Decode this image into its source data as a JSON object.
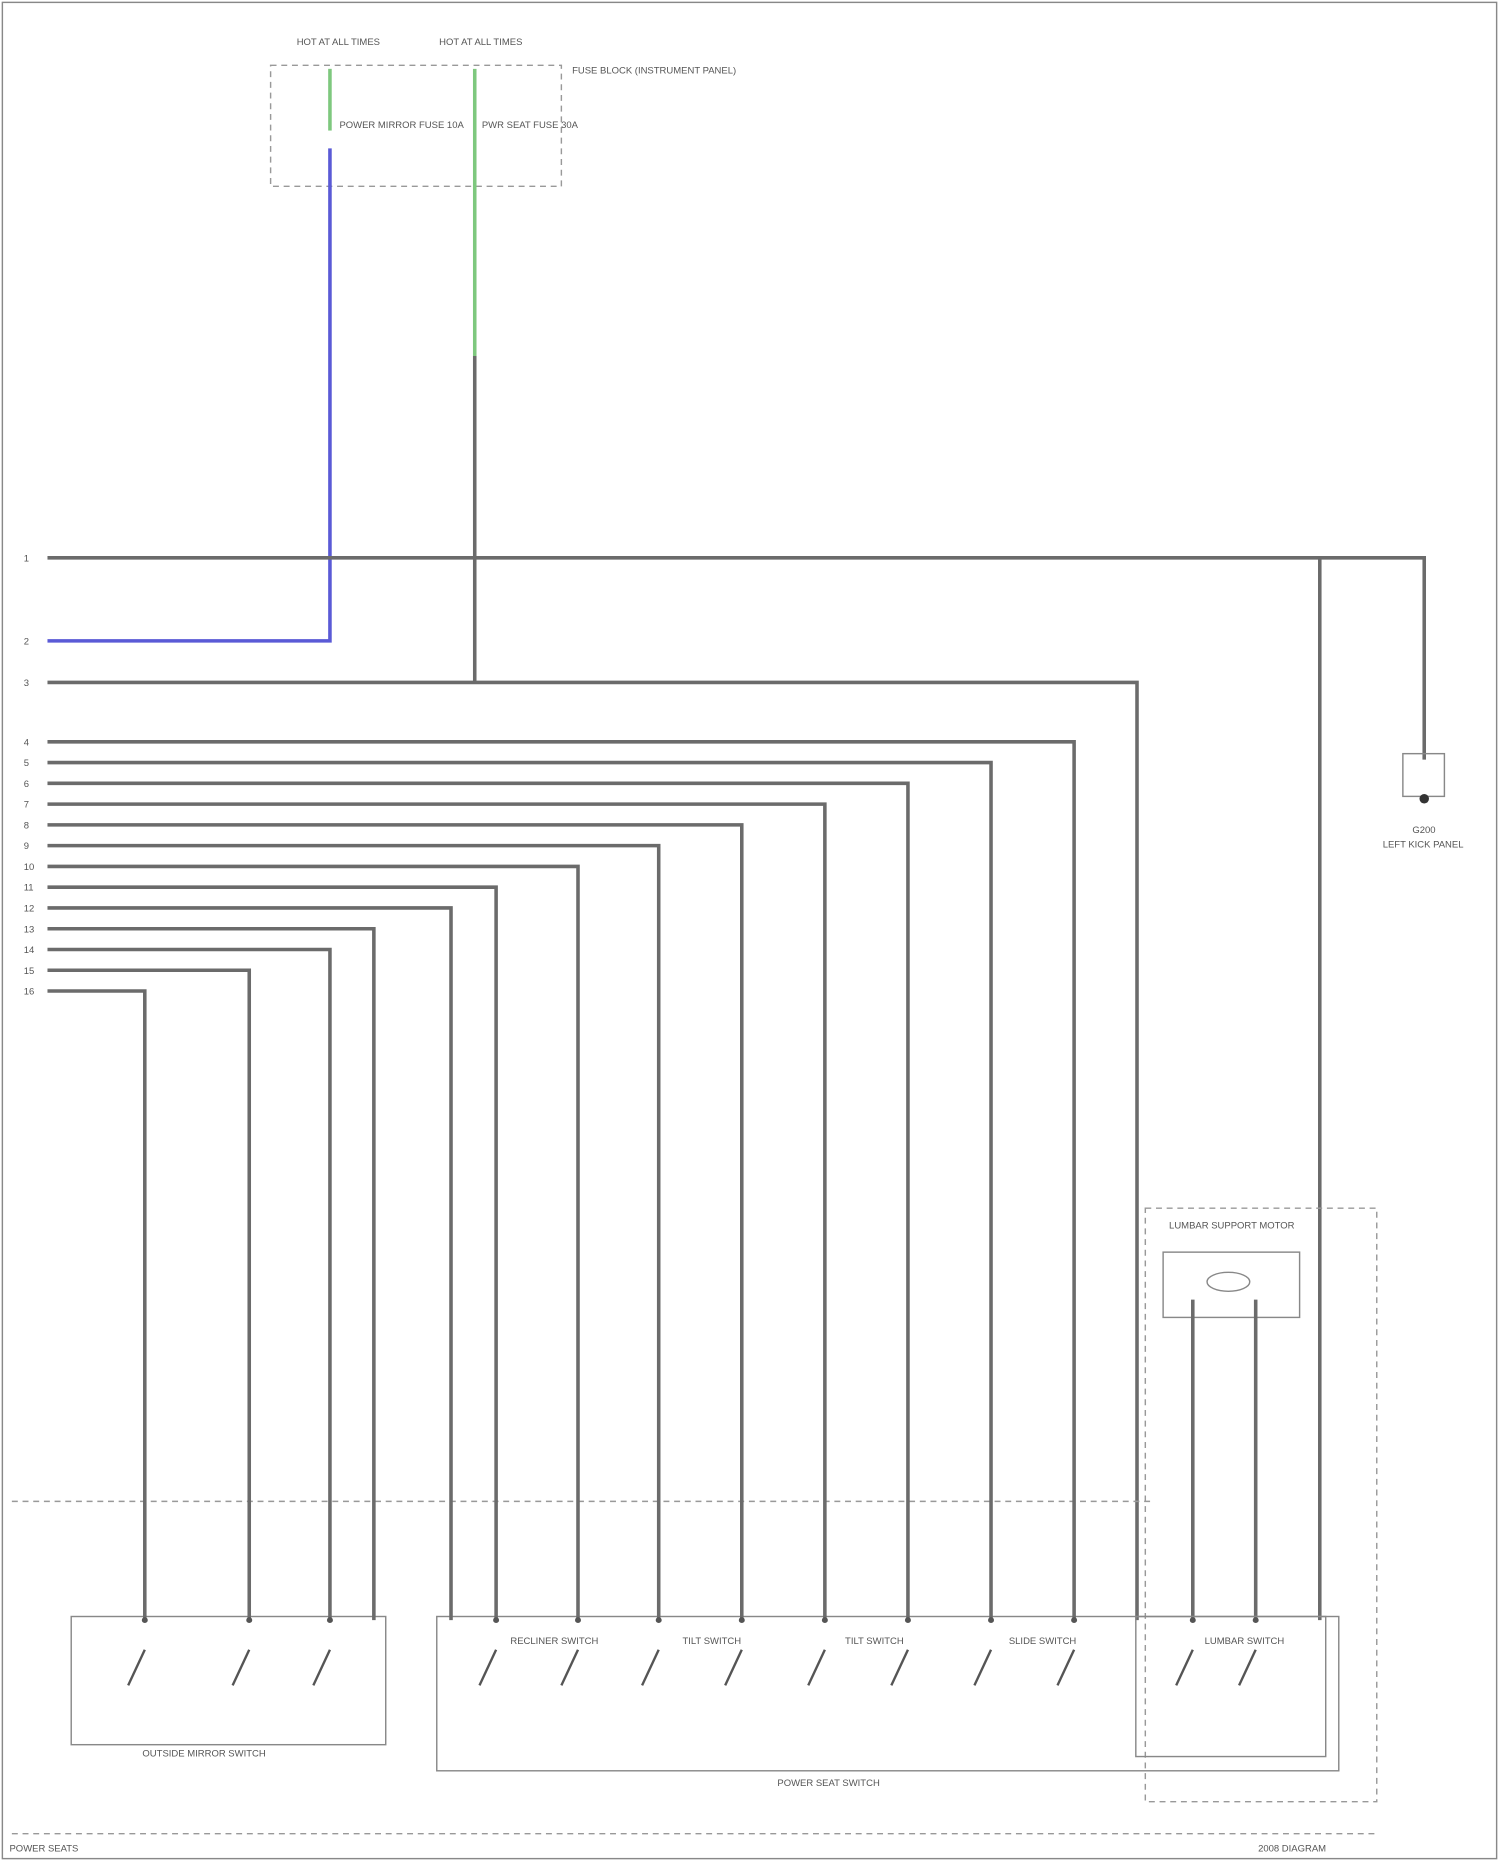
{
  "fuse_block": {
    "title": "FUSE BLOCK (INSTRUMENT PANEL)",
    "feeds": [
      {
        "label": "HOT AT ALL TIMES",
        "fuse": "POWER MIRROR FUSE 10A"
      },
      {
        "label": "HOT AT ALL TIMES",
        "fuse": "PWR SEAT FUSE 30A"
      }
    ]
  },
  "pins": [
    "1",
    "2",
    "3",
    "4",
    "5",
    "6",
    "7",
    "8",
    "9",
    "10",
    "11",
    "12",
    "13",
    "14",
    "15",
    "16"
  ],
  "ground": {
    "label": "G200",
    "description": "LEFT KICK PANEL"
  },
  "components": {
    "mirror_switch": "OUTSIDE MIRROR SWITCH",
    "seat_switch": "POWER SEAT SWITCH",
    "lumbar_motor": "LUMBAR SUPPORT MOTOR",
    "lumbar_switch": "LUMBAR SWITCH",
    "switch_names": [
      "RECLINER SWITCH",
      "TILT SWITCH",
      "TILT SWITCH",
      "SLIDE SWITCH"
    ]
  },
  "footer": {
    "left": "POWER SEATS",
    "right": "2008 DIAGRAM"
  }
}
